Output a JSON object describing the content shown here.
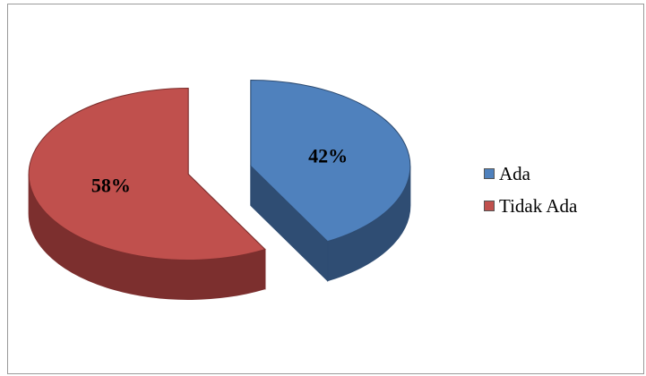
{
  "chart_data": {
    "type": "pie",
    "style": "3d-exploded",
    "categories": [
      "Ada",
      "Tidak Ada"
    ],
    "values": [
      42,
      58
    ],
    "data_labels": [
      "42%",
      "58%"
    ],
    "colors": [
      "#4f81bd",
      "#c0504d"
    ],
    "side_colors": [
      "#2f4d73",
      "#7c2f2e"
    ],
    "legend_position": "right",
    "title": ""
  }
}
